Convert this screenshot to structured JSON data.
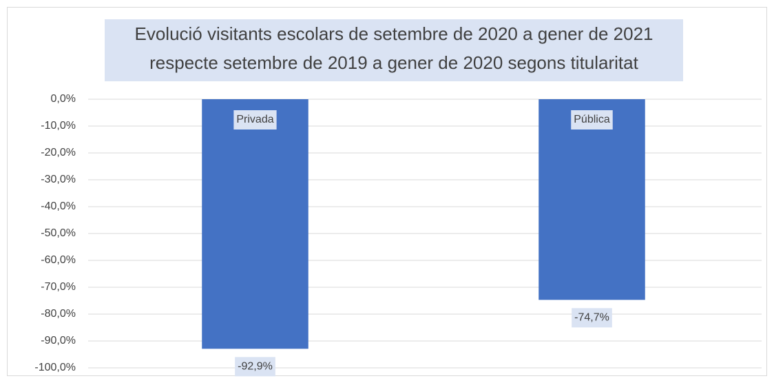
{
  "chart_data": {
    "type": "bar",
    "title": [
      "Evolució visitants escolars de setembre de 2020 a gener de 2021",
      "respecte setembre de 2019 a gener de 2020 segons titularitat"
    ],
    "categories": [
      "Privada",
      "Pública"
    ],
    "values": [
      -92.9,
      -74.7
    ],
    "value_labels": [
      "-92,9%",
      "-74,7%"
    ],
    "color": "#4472c4",
    "ylim": [
      -100,
      0
    ],
    "yticks": [
      {
        "value": 0,
        "label": "0,0%"
      },
      {
        "value": -10,
        "label": "-10,0%"
      },
      {
        "value": -20,
        "label": "-20,0%"
      },
      {
        "value": -30,
        "label": "-30,0%"
      },
      {
        "value": -40,
        "label": "-40,0%"
      },
      {
        "value": -50,
        "label": "-50,0%"
      },
      {
        "value": -60,
        "label": "-60,0%"
      },
      {
        "value": -70,
        "label": "-70,0%"
      },
      {
        "value": -80,
        "label": "-80,0%"
      },
      {
        "value": -90,
        "label": "-90,0%"
      },
      {
        "value": -100,
        "label": "-100,0%"
      }
    ],
    "grid": true
  }
}
